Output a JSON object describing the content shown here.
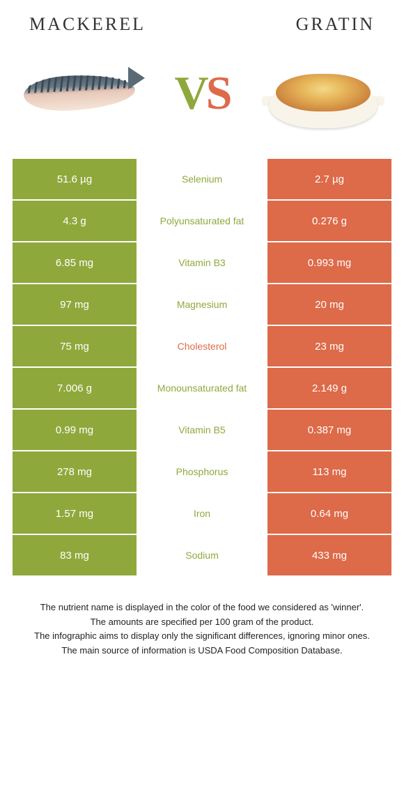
{
  "colors": {
    "left": "#8fa83c",
    "right": "#dd6a49",
    "text": "#222"
  },
  "food_left": "Mackerel",
  "food_right": "Gratin",
  "rows": [
    {
      "left": "51.6 µg",
      "name": "Selenium",
      "right": "2.7 µg",
      "winner": "left"
    },
    {
      "left": "4.3 g",
      "name": "Polyunsaturated fat",
      "right": "0.276 g",
      "winner": "left"
    },
    {
      "left": "6.85 mg",
      "name": "Vitamin B3",
      "right": "0.993 mg",
      "winner": "left"
    },
    {
      "left": "97 mg",
      "name": "Magnesium",
      "right": "20 mg",
      "winner": "left"
    },
    {
      "left": "75 mg",
      "name": "Cholesterol",
      "right": "23 mg",
      "winner": "right"
    },
    {
      "left": "7.006 g",
      "name": "Monounsaturated fat",
      "right": "2.149 g",
      "winner": "left"
    },
    {
      "left": "0.99 mg",
      "name": "Vitamin B5",
      "right": "0.387 mg",
      "winner": "left"
    },
    {
      "left": "278 mg",
      "name": "Phosphorus",
      "right": "113 mg",
      "winner": "left"
    },
    {
      "left": "1.57 mg",
      "name": "Iron",
      "right": "0.64 mg",
      "winner": "left"
    },
    {
      "left": "83 mg",
      "name": "Sodium",
      "right": "433 mg",
      "winner": "left"
    }
  ],
  "footer": [
    "The nutrient name is displayed in the color of the food we considered as 'winner'.",
    "The amounts are specified per 100 gram of the product.",
    "The infographic aims to display only the significant differences, ignoring minor ones.",
    "The main source of information is USDA Food Composition Database."
  ]
}
